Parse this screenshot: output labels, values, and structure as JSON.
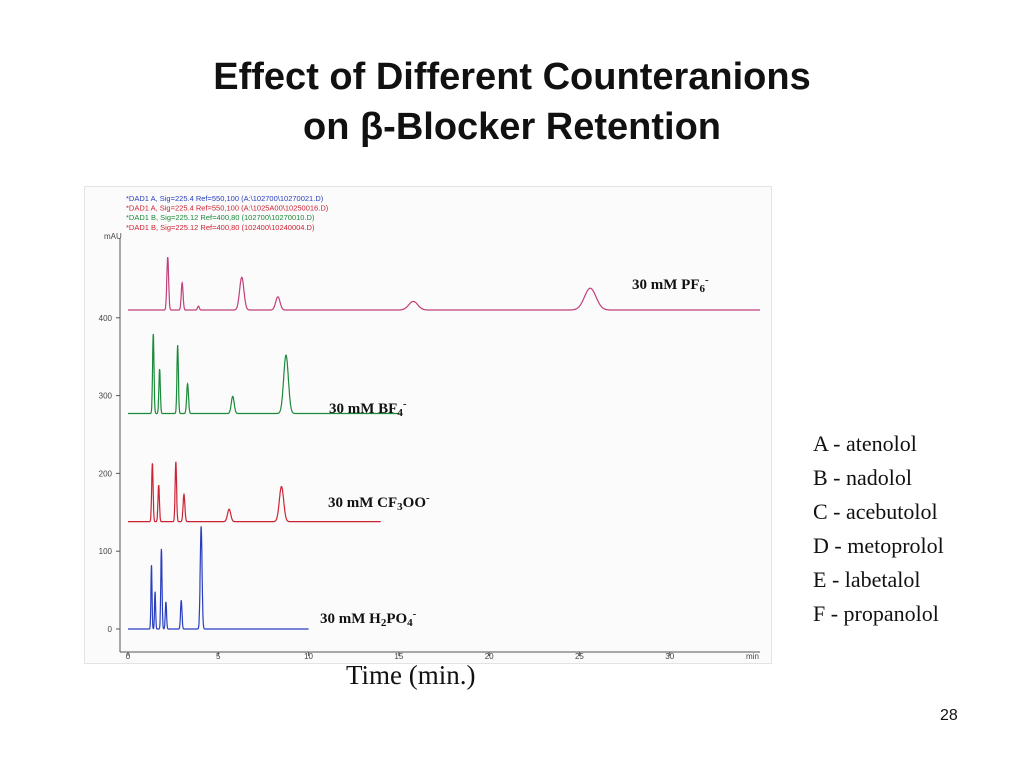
{
  "slide": {
    "title_line1": "Effect of Different Counteranions",
    "title_line2": "on β-Blocker Retention",
    "page_number": "28"
  },
  "instrument_header": [
    {
      "text": "*DAD1 A, Sig=225.4 Ref=550,100 (A:\\102700\\10270021.D)",
      "color": "#2a3fbf"
    },
    {
      "text": "*DAD1 A, Sig=225.4 Ref=550,100 (A:\\1025A00\\10250016.D)",
      "color": "#cc2233"
    },
    {
      "text": "*DAD1 B, Sig=225.12 Ref=400,80 (102700\\10270010.D)",
      "color": "#1a8a3a"
    },
    {
      "text": "*DAD1 B, Sig=225.12 Ref=400,80 (102400\\10240004.D)",
      "color": "#cc2233"
    }
  ],
  "analyte_legend": [
    "A - atenolol",
    "B - nadolol",
    "C - acebutolol",
    "D - metoprolol",
    "E - labetalol",
    "F - propanolol"
  ],
  "chart_data": {
    "type": "line",
    "xlabel": "Time (min.)",
    "ylabel": "mAU",
    "x_unit_label": "min",
    "xlim": [
      0,
      35
    ],
    "ylim": [
      -30,
      510
    ],
    "x_ticks": [
      0,
      5,
      10,
      15,
      20,
      25,
      30
    ],
    "y_ticks": [
      0,
      100,
      200,
      300,
      400
    ],
    "grid": false,
    "series": [
      {
        "name": "30 mM PF6-",
        "label": {
          "pre": "30 mM PF",
          "sub": "6",
          "sup": "-"
        },
        "color": "#c0407a",
        "baseline": 410,
        "x_end": 35,
        "peaks": [
          {
            "t": 2.2,
            "h": 68,
            "w": 0.05
          },
          {
            "t": 3.0,
            "h": 35,
            "w": 0.05
          },
          {
            "t": 3.9,
            "h": 5,
            "w": 0.05
          },
          {
            "t": 6.3,
            "h": 42,
            "w": 0.12
          },
          {
            "t": 8.3,
            "h": 17,
            "w": 0.12
          },
          {
            "t": 15.8,
            "h": 11,
            "w": 0.25
          },
          {
            "t": 25.6,
            "h": 28,
            "w": 0.32
          }
        ]
      },
      {
        "name": "30 mM BF4-",
        "label": {
          "pre": "30 mM BF",
          "sub": "4",
          "sup": "-"
        },
        "color": "#1a8a3a",
        "baseline": 277,
        "x_end": 15,
        "peaks": [
          {
            "t": 1.4,
            "h": 102,
            "w": 0.04
          },
          {
            "t": 1.75,
            "h": 57,
            "w": 0.04
          },
          {
            "t": 2.75,
            "h": 88,
            "w": 0.04
          },
          {
            "t": 3.3,
            "h": 38,
            "w": 0.05
          },
          {
            "t": 5.8,
            "h": 22,
            "w": 0.08
          },
          {
            "t": 8.75,
            "h": 75,
            "w": 0.13
          }
        ]
      },
      {
        "name": "30 mM CF3OO-",
        "label": {
          "pre": "30 mM CF",
          "sub": "3",
          "post": "OO",
          "sup": "-"
        },
        "color": "#cc2233",
        "baseline": 138,
        "x_end": 14,
        "peaks": [
          {
            "t": 1.35,
            "h": 75,
            "w": 0.04
          },
          {
            "t": 1.7,
            "h": 47,
            "w": 0.04
          },
          {
            "t": 2.65,
            "h": 77,
            "w": 0.04
          },
          {
            "t": 3.1,
            "h": 35,
            "w": 0.05
          },
          {
            "t": 5.6,
            "h": 16,
            "w": 0.09
          },
          {
            "t": 8.5,
            "h": 45,
            "w": 0.12
          }
        ]
      },
      {
        "name": "30 mM H2PO4-",
        "label": {
          "pre": "30 mM H",
          "sub": "2",
          "post": "PO",
          "sub2": "4",
          "sup": "-"
        },
        "color": "#2a3fbf",
        "baseline": 0,
        "x_end": 10,
        "peaks": [
          {
            "t": 1.3,
            "h": 82,
            "w": 0.03
          },
          {
            "t": 1.5,
            "h": 48,
            "w": 0.03
          },
          {
            "t": 1.85,
            "h": 103,
            "w": 0.035
          },
          {
            "t": 2.1,
            "h": 35,
            "w": 0.035
          },
          {
            "t": 2.95,
            "h": 37,
            "w": 0.04
          },
          {
            "t": 4.05,
            "h": 132,
            "w": 0.05
          }
        ]
      }
    ]
  }
}
